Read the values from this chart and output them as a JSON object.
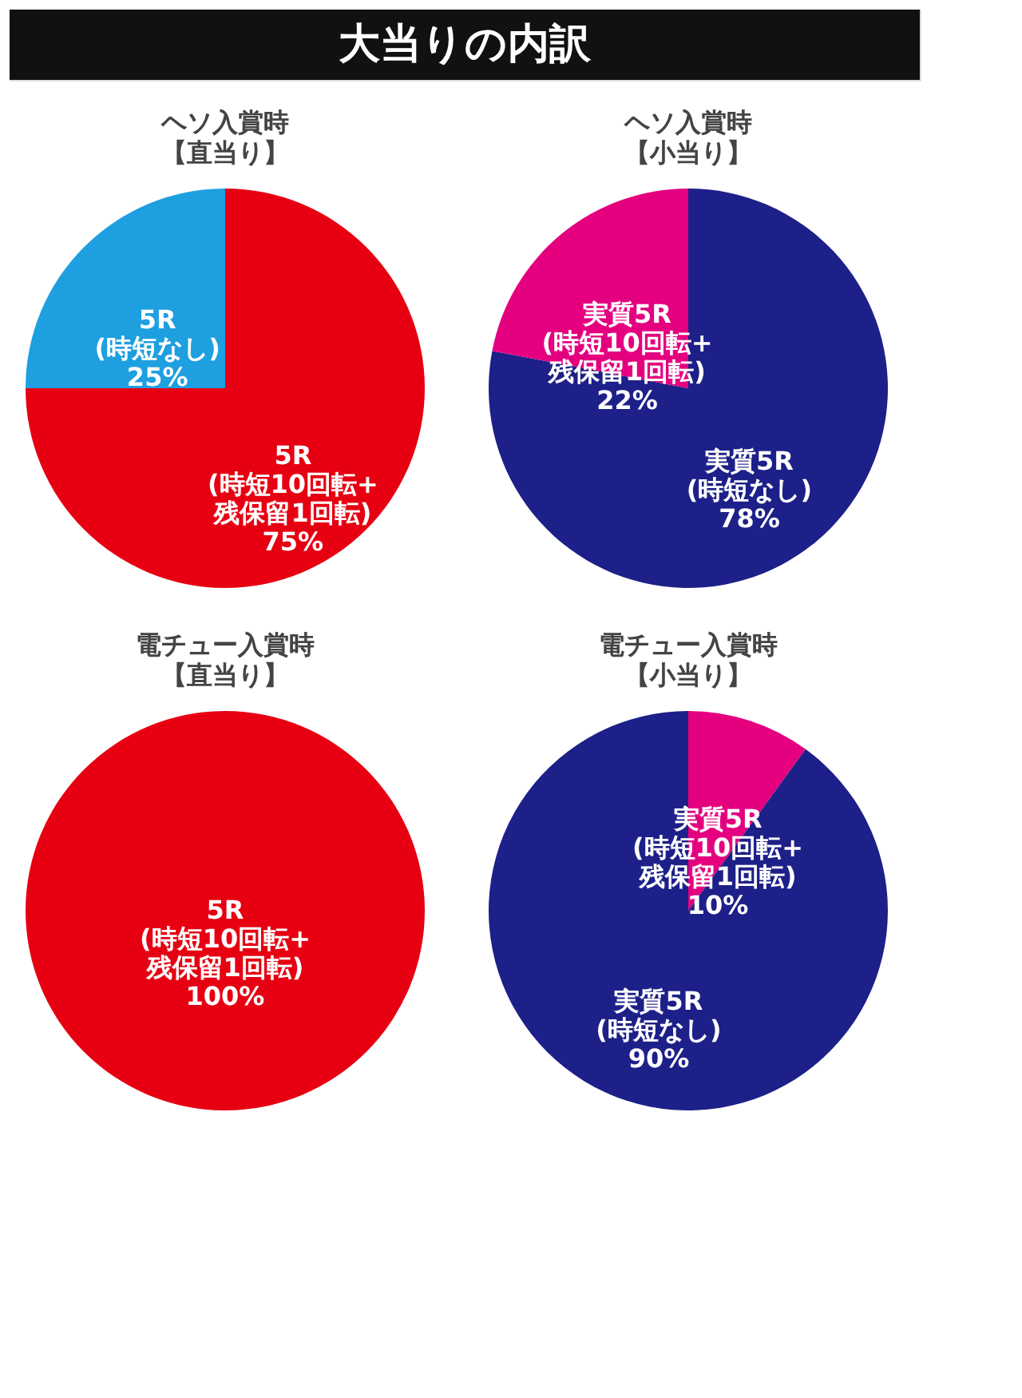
{
  "chart_data": [
    {
      "type": "other",
      "title": "大当りの内訳"
    },
    {
      "type": "pie",
      "title": "ヘソ入賞時",
      "subtitle": "【直当り】",
      "categories": [
        "5R\n(時短10回転+\n残保留1回転)",
        "5R\n(時短なし)"
      ],
      "values": [
        75,
        25
      ],
      "colors": [
        "#e60012",
        "#1e9fe0"
      ],
      "value_labels": [
        "75%",
        "25%"
      ]
    },
    {
      "type": "pie",
      "title": "ヘソ入賞時",
      "subtitle": "【小当り】",
      "categories": [
        "実質5R\n(時短なし)",
        "実質5R\n(時短10回転+\n残保留1回転)"
      ],
      "values": [
        78,
        22
      ],
      "colors": [
        "#1d2088",
        "#e4007f"
      ],
      "value_labels": [
        "78%",
        "22%"
      ]
    },
    {
      "type": "pie",
      "title": "電チュー入賞時",
      "subtitle": "【直当り】",
      "categories": [
        "5R\n(時短10回転+\n残保留1回転)"
      ],
      "values": [
        100
      ],
      "colors": [
        "#e60012"
      ],
      "value_labels": [
        "100%"
      ]
    },
    {
      "type": "pie",
      "title": "電チュー入賞時",
      "subtitle": "【小当り】",
      "categories": [
        "実質5R\n(時短10回転+\n残保留1回転)",
        "実質5R\n(時短なし)"
      ],
      "values": [
        10,
        90
      ],
      "colors": [
        "#e4007f",
        "#1d2088"
      ],
      "value_labels": [
        "10%",
        "90%"
      ]
    }
  ]
}
